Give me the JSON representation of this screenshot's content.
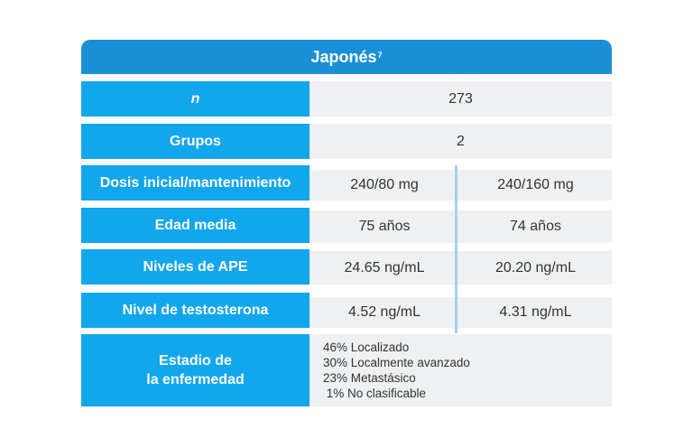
{
  "header": {
    "title": "Japonés",
    "superscript": "7"
  },
  "rows": [
    {
      "label": "n",
      "value": "273"
    },
    {
      "label": "Grupos",
      "value": "2"
    },
    {
      "label": "Dosis inicial/mantenimiento",
      "values": [
        "240/80 mg",
        "240/160 mg"
      ]
    },
    {
      "label": "Edad media",
      "values": [
        "75 años",
        "74 años"
      ]
    },
    {
      "label": "Niveles de APE",
      "values": [
        "24.65 ng/mL",
        "20.20 ng/mL"
      ]
    },
    {
      "label": "Nivel de testosterona",
      "values": [
        "4.52 ng/mL",
        "4.31 ng/mL"
      ]
    }
  ],
  "stage": {
    "label_line1": "Estadio de",
    "label_line2": "la enfermedad",
    "items": [
      "46% Localizado",
      "30% Localmente avanzado",
      "23% Metastásico",
      " 1% No clasificable"
    ]
  }
}
